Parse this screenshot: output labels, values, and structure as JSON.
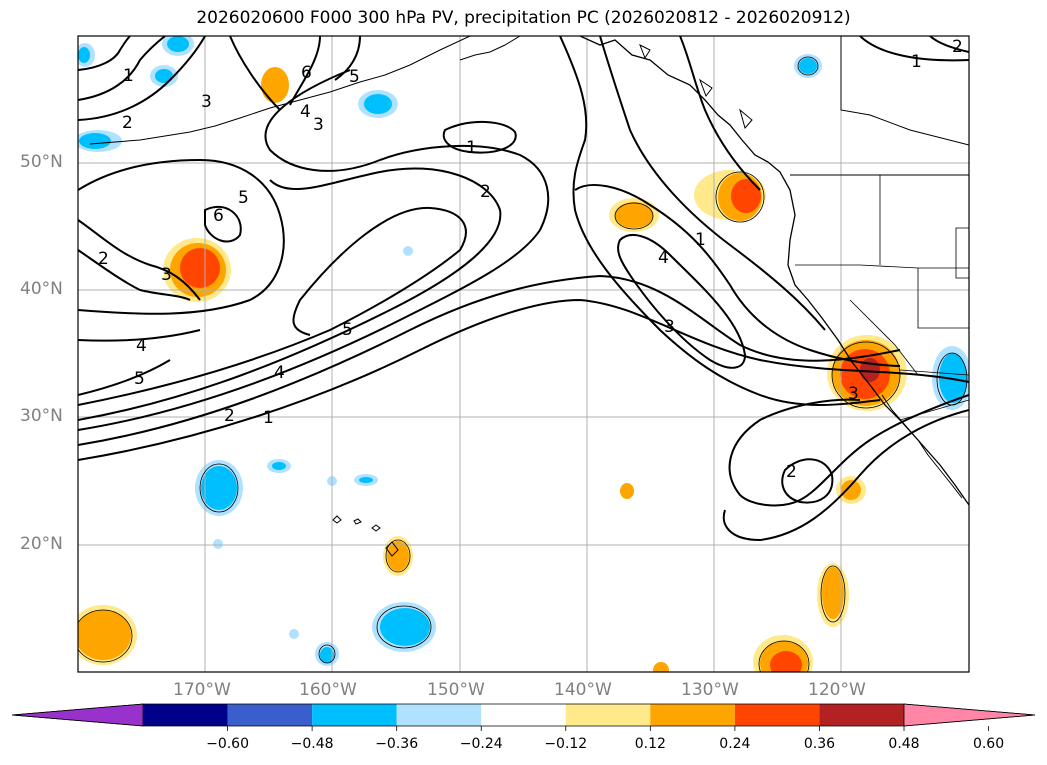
{
  "title": "2026020600 F000 300 hPa PV, precipitation PC (2026020812 - 2026020912)",
  "lat_labels": [
    "50°N",
    "40°N",
    "30°N",
    "20°N"
  ],
  "lon_labels": [
    "170°W",
    "160°W",
    "150°W",
    "140°W",
    "130°W",
    "120°W"
  ],
  "colorbar": {
    "ticks": [
      "−0.60",
      "−0.48",
      "−0.36",
      "−0.24",
      "−0.12",
      "0.12",
      "0.24",
      "0.36",
      "0.48",
      "0.60"
    ],
    "colors": [
      "#9932cc",
      "#00008b",
      "#3a5fcd",
      "#00bfff",
      "#b0e2ff",
      "#ffffff",
      "#ffe98a",
      "#ffa500",
      "#ff4500",
      "#b22222",
      "#ff86a6"
    ]
  },
  "contour_labels": {
    "l1": "1",
    "l2": "2",
    "l3": "3",
    "l4": "4",
    "l5": "5",
    "l6": "6"
  },
  "colors": {
    "grid": "#b0b0b0",
    "contour": "#000000",
    "coast": "#000000"
  }
}
